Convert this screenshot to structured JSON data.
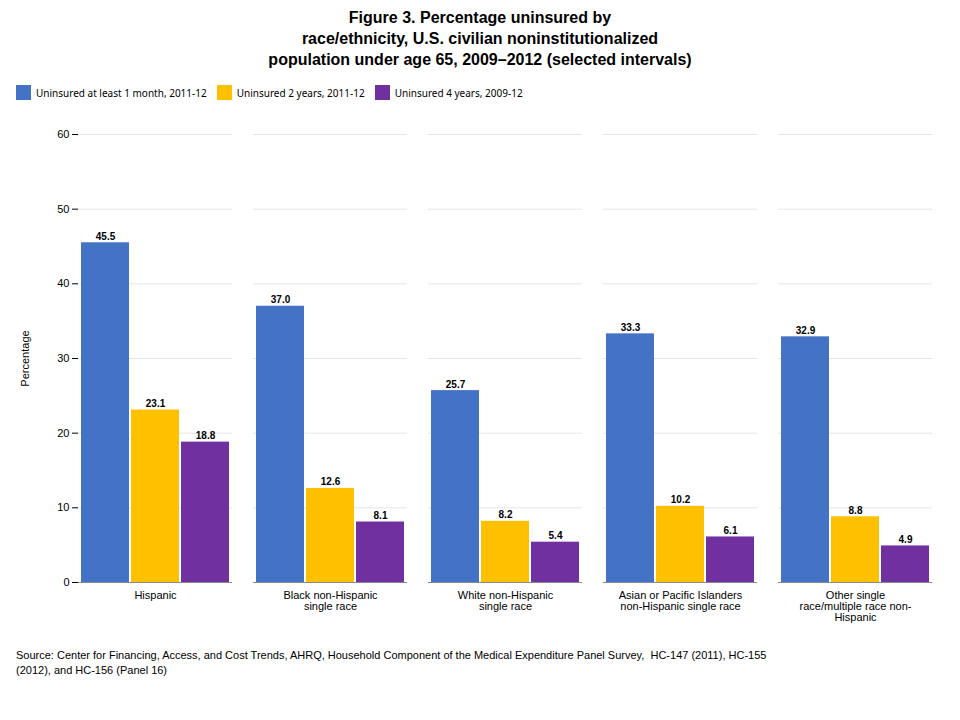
{
  "chart_data": {
    "type": "bar",
    "title": "Figure 3. Percentage uninsured by\nrace/ethnicity, U.S. civilian noninstitutionalized\npopulation under age 65, 2009–2012 (selected intervals)",
    "ylabel": "Percentage",
    "categories": [
      "Hispanic",
      "Black non-Hispanic\nsingle race",
      "White non-Hispanic\nsingle race",
      "Asian or Pacific Islanders\nnon-Hispanic single race",
      "Other single\nrace/multiple race non-\nHispanic"
    ],
    "series": [
      {
        "name": "Uninsured at least 1 month, 2011-12",
        "color": "#4472C4",
        "values": [
          45.5,
          37.0,
          25.7,
          33.3,
          32.9
        ],
        "value_labels": [
          "45.5",
          "37.0",
          "25.7",
          "33.3",
          "32.9"
        ]
      },
      {
        "name": "Uninsured 2 years, 2011-12",
        "color": "#FFC000",
        "values": [
          23.1,
          12.6,
          8.2,
          10.2,
          8.8
        ],
        "value_labels": [
          "23.1",
          "12.6",
          "8.2",
          "10.2",
          "8.8"
        ]
      },
      {
        "name": "Uninsured 4 years, 2009-12",
        "color": "#7030A0",
        "values": [
          18.8,
          8.1,
          5.4,
          6.1,
          4.9
        ],
        "value_labels": [
          "18.8",
          "8.1",
          "5.4",
          "6.1",
          "4.9"
        ]
      }
    ],
    "ylim": [
      0,
      60
    ],
    "yticks": [
      0,
      10,
      20,
      30,
      40,
      50,
      60
    ],
    "grid": true,
    "legend": "top",
    "data_labels": true,
    "source": "Source: Center for Financing, Access, and Cost Trends, AHRQ, Household Component of the Medical Expenditure Panel Survey,  HC-147 (2011), HC-155\n(2012), and HC-156 (Panel 16)"
  }
}
